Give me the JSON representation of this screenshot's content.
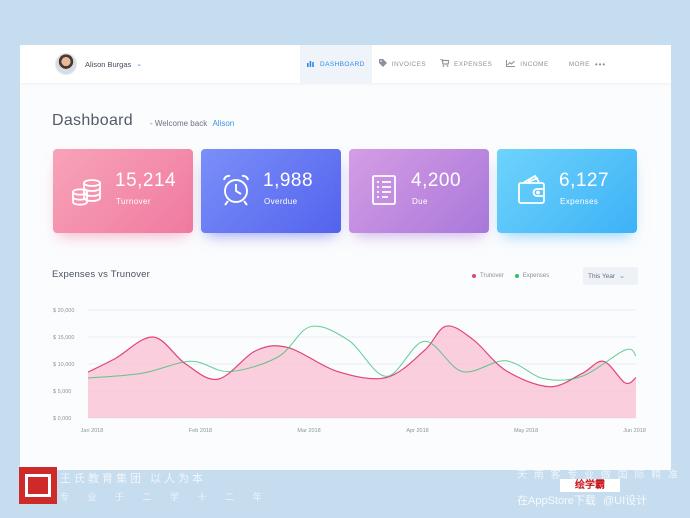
{
  "user": {
    "name": "Alison Burgas"
  },
  "nav": [
    {
      "label": "DASHBOARD",
      "icon": "chart-icon",
      "active": true
    },
    {
      "label": "INVOICES",
      "icon": "tag-icon"
    },
    {
      "label": "EXPENSES",
      "icon": "cart-icon"
    },
    {
      "label": "INCOME",
      "icon": "trend-icon"
    },
    {
      "label": "MORE",
      "icon": "more-dots-icon"
    }
  ],
  "page": {
    "title": "Dashboard",
    "welcome_prefix": "- Welcome back",
    "welcome_name": "Alison"
  },
  "stats": [
    {
      "value": "15,214",
      "label": "Turnover",
      "icon": "coins-icon",
      "color": "#f07aa0"
    },
    {
      "value": "1,988",
      "label": "Overdue",
      "icon": "alarm-clock-icon",
      "color": "#5463ee"
    },
    {
      "value": "4,200",
      "label": "Due",
      "icon": "document-list-icon",
      "color": "#a978da"
    },
    {
      "value": "6,127",
      "label": "Expenses",
      "icon": "wallet-icon",
      "color": "#3db2f7"
    }
  ],
  "chart_section": {
    "title": "Expenses vs Trunover",
    "legend": [
      {
        "label": "Trunover",
        "color": "#e0457b"
      },
      {
        "label": "Expenses",
        "color": "#2fbf71"
      }
    ],
    "period": "This Year"
  },
  "chart_data": {
    "type": "area",
    "title": "Expenses vs Trunover",
    "x_ticks": [
      "Jan 2018",
      "Feb 2018",
      "Mar 2018",
      "Apr 2018",
      "May 2018",
      "Jun 2018"
    ],
    "y_ticks": [
      "$ 0,000",
      "$ 5,000",
      "$ 10,000",
      "$ 15,000",
      "$ 20,000"
    ],
    "ylim": [
      0,
      20000
    ],
    "x_range": [
      1,
      6.05
    ],
    "legend_position": "top-right",
    "series": [
      {
        "name": "Trunover",
        "color": "#e0457b",
        "points": [
          [
            1,
            8500
          ],
          [
            1.25,
            11000
          ],
          [
            1.6,
            15000
          ],
          [
            1.9,
            10000
          ],
          [
            2.2,
            7200
          ],
          [
            2.55,
            12500
          ],
          [
            2.85,
            13000
          ],
          [
            3.3,
            8600
          ],
          [
            3.75,
            7500
          ],
          [
            4.1,
            12500
          ],
          [
            4.3,
            17000
          ],
          [
            4.55,
            14500
          ],
          [
            4.85,
            8800
          ],
          [
            5.25,
            5800
          ],
          [
            5.55,
            8200
          ],
          [
            5.75,
            10500
          ],
          [
            5.95,
            6500
          ],
          [
            6.05,
            7500
          ]
        ]
      },
      {
        "name": "Expenses",
        "color": "#2fbf71",
        "points": [
          [
            1,
            7400
          ],
          [
            1.5,
            8300
          ],
          [
            1.95,
            10500
          ],
          [
            2.3,
            8600
          ],
          [
            2.75,
            11300
          ],
          [
            3.05,
            16900
          ],
          [
            3.4,
            14400
          ],
          [
            3.75,
            7700
          ],
          [
            4.1,
            14200
          ],
          [
            4.45,
            8600
          ],
          [
            4.85,
            10600
          ],
          [
            5.2,
            7300
          ],
          [
            5.55,
            7700
          ],
          [
            5.95,
            12600
          ],
          [
            6.05,
            11500
          ]
        ]
      }
    ]
  },
  "footer": {
    "left_line1": "王氏教育集团 以人为本",
    "left_line2": "专 业 于 二 学 十 二 年",
    "right_line1": "天 南 客 专 业 做 国 际 精 准",
    "brand": "绘学霸",
    "right_line2": "在AppStore下载",
    "right_line3": "@UI设计"
  }
}
